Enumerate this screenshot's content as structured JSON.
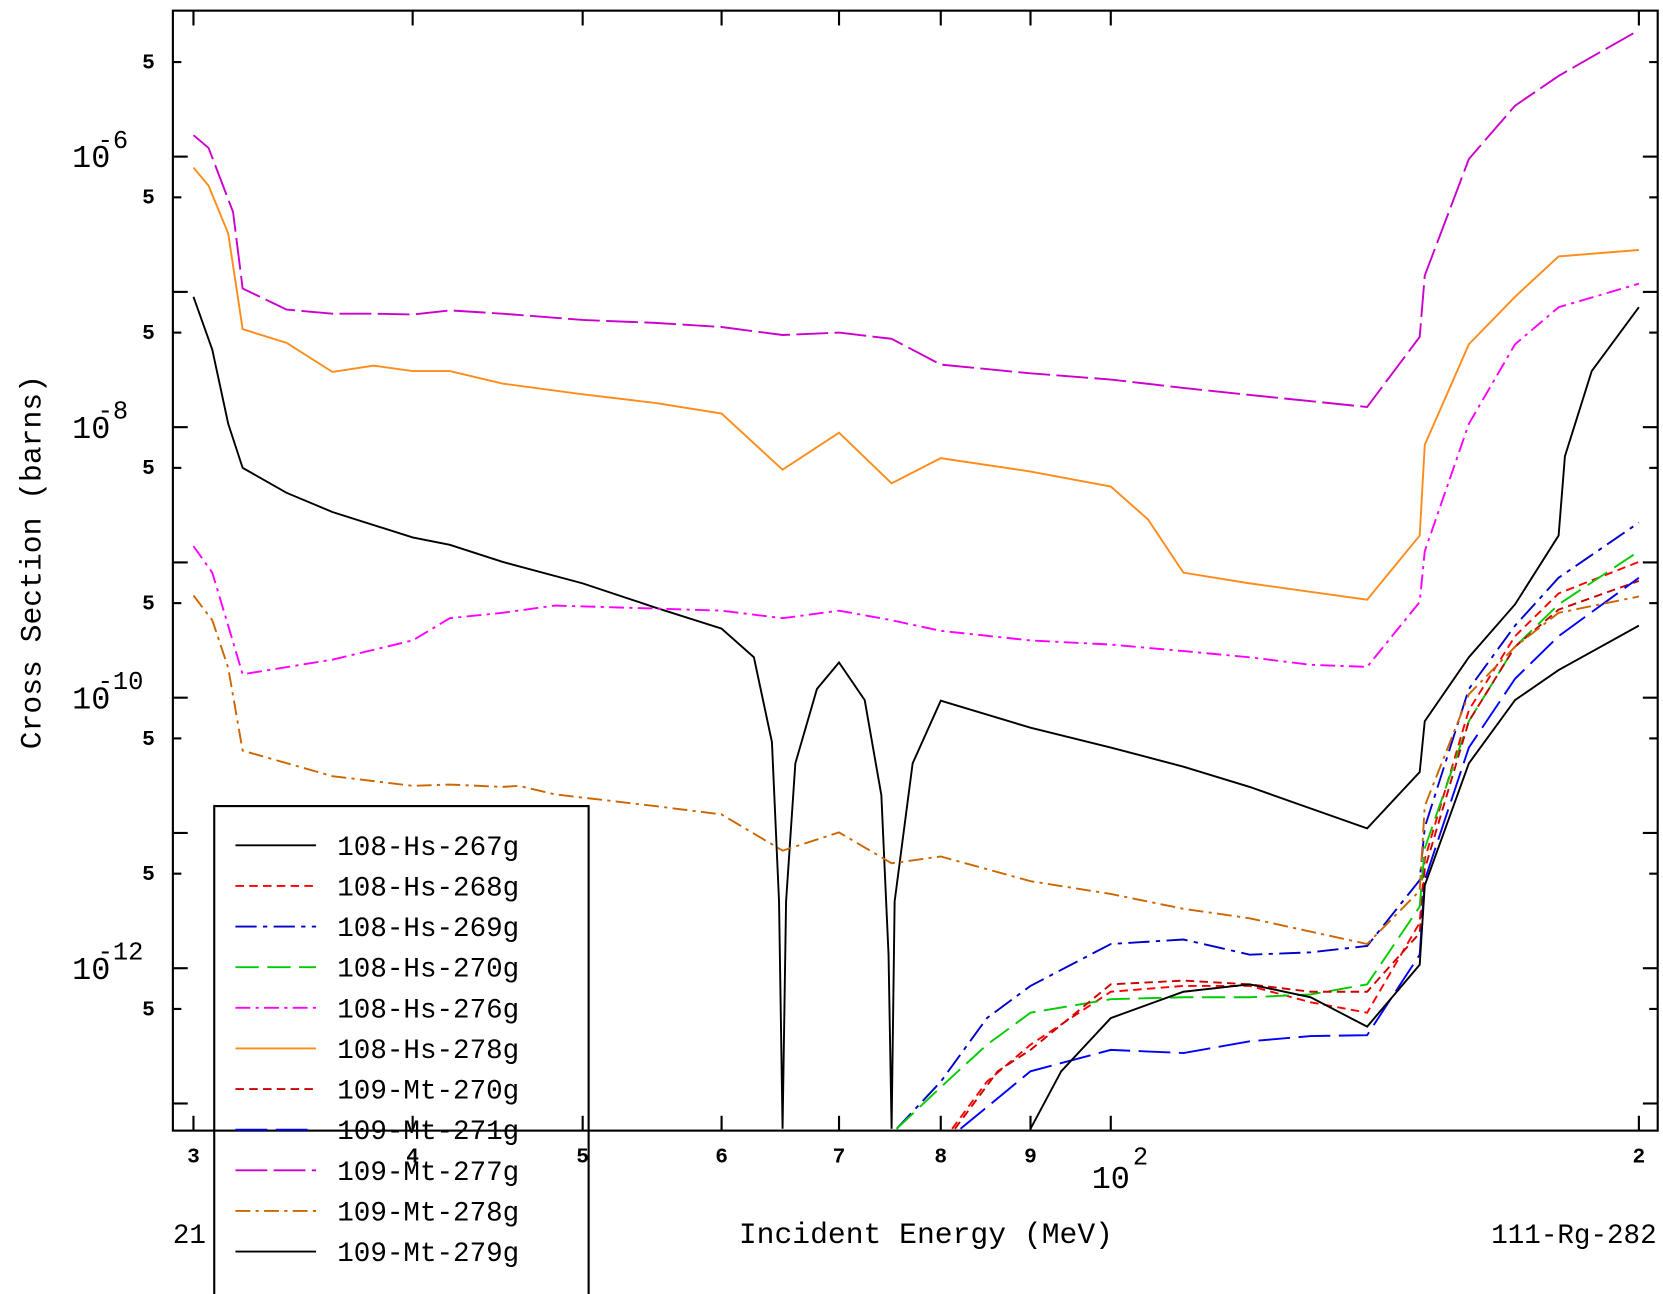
{
  "chart_data": {
    "type": "line",
    "xlabel": "Incident Energy (MeV)",
    "ylabel": "Cross Section (barns)",
    "left_note": "21",
    "right_note": "111-Rg-282",
    "xscale": "log",
    "yscale": "log",
    "legend": "lower left",
    "xlim": [
      29.2,
      205
    ],
    "ylim": [
      6.3e-14,
      1.2e-05
    ],
    "xticks": [
      {
        "value": 30,
        "label": "3"
      },
      {
        "value": 40,
        "label": "4"
      },
      {
        "value": 50,
        "label": "5"
      },
      {
        "value": 60,
        "label": "6"
      },
      {
        "value": 70,
        "label": "7"
      },
      {
        "value": 80,
        "label": "8"
      },
      {
        "value": 90,
        "label": "9"
      },
      {
        "value": 100,
        "label": "10",
        "exponent": "2"
      },
      {
        "value": 200,
        "label": "2"
      }
    ],
    "yticks": [
      {
        "value": 5e-06,
        "label": "5"
      },
      {
        "value": 1e-06,
        "label": "10",
        "exponent": "-6"
      },
      {
        "value": 5e-07,
        "label": "5"
      },
      {
        "value": 5e-08,
        "label": "5"
      },
      {
        "value": 1e-08,
        "label": "10",
        "exponent": "-8"
      },
      {
        "value": 5e-09,
        "label": "5"
      },
      {
        "value": 5e-10,
        "label": "5"
      },
      {
        "value": 1e-10,
        "label": "10",
        "exponent": "-10"
      },
      {
        "value": 5e-11,
        "label": "5"
      },
      {
        "value": 5e-12,
        "label": "5"
      },
      {
        "value": 1e-12,
        "label": "10",
        "exponent": "-12"
      },
      {
        "value": 5e-13,
        "label": "5"
      }
    ],
    "yminor": [
      1e-07,
      1e-09,
      1e-11,
      1e-13
    ],
    "series": [
      {
        "name": "108-Hs-267g",
        "color": "#000000",
        "dash": "none",
        "x": [
          30,
          30.75,
          31.4,
          32,
          33.9,
          36,
          40,
          42,
          45,
          50,
          55,
          60,
          62.6,
          64.1,
          64.7,
          65,
          65.3,
          66.1,
          68,
          70,
          72.4,
          74,
          74.7,
          75,
          75.3,
          77.1,
          80,
          90,
          100,
          110,
          120,
          140,
          150,
          151,
          160,
          170,
          180,
          181.5,
          188,
          200
        ],
        "values": [
          9.2e-08,
          3.74e-08,
          1.06e-08,
          5e-09,
          3.27e-09,
          2.36e-09,
          1.53e-09,
          1.35e-09,
          1.01e-09,
          7e-10,
          4.64e-10,
          3.24e-10,
          1.99e-10,
          4.69e-11,
          3.12e-12,
          6.5e-14,
          3.12e-12,
          3.27e-11,
          1.16e-10,
          1.82e-10,
          9.6e-11,
          1.9e-11,
          1.26e-12,
          6.5e-14,
          3.12e-12,
          3.27e-11,
          9.5e-11,
          6e-11,
          4.28e-11,
          3.09e-11,
          2.19e-11,
          1.08e-11,
          2.82e-11,
          6.7e-11,
          1.99e-10,
          4.9e-10,
          1.58e-09,
          6.1e-09,
          2.6e-08,
          7.7e-08
        ]
      },
      {
        "name": "108-Hs-268g",
        "color": "#ff0000",
        "dash": "8,5",
        "x": [
          81.2,
          85,
          90,
          100,
          110,
          120,
          130,
          140,
          150,
          151,
          160,
          170,
          180,
          200
        ],
        "values": [
          6.5e-14,
          1.45e-13,
          2.72e-13,
          6.7e-13,
          7.4e-13,
          7.4e-13,
          5.6e-13,
          4.69e-13,
          2.17e-12,
          6.4e-12,
          8.1e-11,
          2.85e-10,
          5.9e-10,
          1.01e-09
        ]
      },
      {
        "name": "108-Hs-269g",
        "color": "#0000cc",
        "dash": "20,6,4,6",
        "x": [
          75.5,
          80,
          85,
          90,
          100,
          110,
          120,
          130,
          140,
          150,
          151,
          160,
          170,
          180,
          200
        ],
        "values": [
          6.5e-14,
          1.45e-13,
          4.28e-13,
          7.4e-13,
          1.51e-12,
          1.63e-12,
          1.26e-12,
          1.31e-12,
          1.46e-12,
          4.48e-12,
          1.1e-11,
          1.16e-10,
          3.41e-10,
          7.7e-10,
          1.97e-09
        ]
      },
      {
        "name": "108-Hs-270g",
        "color": "#00cc00",
        "dash": "22,8",
        "x": [
          75.5,
          80,
          85,
          90,
          100,
          110,
          120,
          130,
          140,
          150,
          151,
          160,
          170,
          180,
          200
        ],
        "values": [
          6.5e-14,
          1.32e-13,
          2.72e-13,
          4.69e-13,
          5.9e-13,
          6.1e-13,
          6.1e-13,
          6.4e-13,
          7.6e-13,
          2.85e-12,
          7.7e-12,
          6.7e-11,
          2.38e-10,
          4.9e-10,
          1.21e-09
        ]
      },
      {
        "name": "108-Hs-276g",
        "color": "#ff00ff",
        "dash": "14,5,3,5",
        "x": [
          30,
          30.75,
          31.4,
          32,
          36,
          40,
          42,
          45,
          48.2,
          55,
          60,
          65,
          70,
          75,
          80,
          90,
          100,
          110,
          120,
          130,
          140,
          150,
          151,
          160,
          170,
          180,
          200
        ],
        "values": [
          1.32e-09,
          8.4e-10,
          3.4e-10,
          1.49e-10,
          1.91e-10,
          2.65e-10,
          3.87e-10,
          4.24e-10,
          4.8e-10,
          4.56e-10,
          4.4e-10,
          3.87e-10,
          4.4e-10,
          3.74e-10,
          3.12e-10,
          2.65e-10,
          2.47e-10,
          2.21e-10,
          1.99e-10,
          1.75e-10,
          1.69e-10,
          5.1e-10,
          1.21e-09,
          1.06e-08,
          4.1e-08,
          7.7e-08,
          1.15e-07
        ]
      },
      {
        "name": "108-Hs-278g",
        "color": "#ff8c1a",
        "dash": "none",
        "x": [
          30,
          30.6,
          31.4,
          32,
          33.9,
          36,
          38,
          40,
          42,
          45,
          50,
          55,
          60,
          65,
          70,
          75,
          80,
          90,
          100,
          105,
          110,
          120,
          140,
          150,
          151,
          160,
          170,
          180,
          200
        ],
        "values": [
          8.3e-07,
          6.1e-07,
          2.7e-07,
          5.3e-08,
          4.2e-08,
          2.56e-08,
          2.85e-08,
          2.6e-08,
          2.6e-08,
          2.1e-08,
          1.75e-08,
          1.51e-08,
          1.26e-08,
          4.85e-09,
          9.1e-09,
          3.84e-09,
          5.9e-09,
          4.7e-09,
          3.64e-09,
          2.08e-09,
          8.4e-10,
          7e-10,
          5.3e-10,
          1.58e-09,
          7.4e-09,
          4.1e-08,
          9.2e-08,
          1.83e-07,
          2.04e-07
        ]
      },
      {
        "name": "109-Mt-270g",
        "color": "#cc0000",
        "dash": "8,5",
        "x": [
          81.5,
          86.2,
          90,
          100,
          110,
          120,
          130,
          140,
          150,
          151,
          160,
          170,
          180,
          200
        ],
        "values": [
          6.5e-14,
          1.73e-13,
          2.49e-13,
          7.6e-13,
          8.1e-13,
          7.6e-13,
          6.7e-13,
          6.7e-13,
          1.82e-12,
          5.4e-12,
          6.7e-11,
          2.38e-10,
          4.48e-10,
          7.3e-10
        ]
      },
      {
        "name": "109-Mt-271g",
        "color": "#0000ff",
        "dash": "30,8",
        "x": [
          82.1,
          90,
          100,
          110,
          120,
          130,
          140,
          150,
          151,
          160,
          170,
          180,
          200
        ],
        "values": [
          6.5e-14,
          1.73e-13,
          2.49e-13,
          2.36e-13,
          2.88e-13,
          3.15e-13,
          3.2e-13,
          1.26e-12,
          4.48e-12,
          4.28e-11,
          1.38e-10,
          2.85e-10,
          7.7e-10
        ]
      },
      {
        "name": "109-Mt-277g",
        "color": "#cc00cc",
        "dash": "30,6",
        "x": [
          30,
          30.6,
          31.6,
          32,
          33.9,
          36,
          38,
          40,
          42,
          45,
          50,
          55,
          60,
          65,
          70,
          75,
          80,
          90,
          100,
          110,
          120,
          140,
          150,
          151,
          160,
          170,
          180,
          190,
          200
        ],
        "values": [
          1.44e-06,
          1.16e-06,
          3.9e-07,
          1.06e-07,
          7.4e-08,
          6.9e-08,
          6.9e-08,
          6.8e-08,
          7.3e-08,
          6.9e-08,
          6.2e-08,
          5.9e-08,
          5.5e-08,
          4.8e-08,
          5e-08,
          4.5e-08,
          2.9e-08,
          2.5e-08,
          2.25e-08,
          1.95e-08,
          1.73e-08,
          1.41e-08,
          4.65e-08,
          1.32e-07,
          9.6e-07,
          2.38e-06,
          3.95e-06,
          5.9e-06,
          8.6e-06
        ]
      },
      {
        "name": "109-Mt-278g",
        "color": "#cc6600",
        "dash": "14,5,3,5",
        "x": [
          30,
          30.75,
          31.4,
          32,
          36,
          40,
          42,
          45,
          46,
          48.2,
          55,
          60,
          65,
          70,
          75,
          80,
          90,
          100,
          110,
          120,
          140,
          150,
          151,
          160,
          170,
          180,
          200
        ],
        "values": [
          5.7e-10,
          3.74e-10,
          1.66e-10,
          4.06e-11,
          2.63e-11,
          2.23e-11,
          2.28e-11,
          2.19e-11,
          2.23e-11,
          1.93e-11,
          1.58e-11,
          1.37e-11,
          7.4e-12,
          1.01e-11,
          5.97e-12,
          6.7e-12,
          4.4e-12,
          3.54e-12,
          2.75e-12,
          2.34e-12,
          1.51e-12,
          3.74e-12,
          1.58e-11,
          1.06e-10,
          2.38e-10,
          4.24e-10,
          5.6e-10
        ]
      },
      {
        "name": "109-Mt-279g",
        "color": "#000000",
        "dash": "none",
        "x": [
          90,
          93.7,
          100,
          110,
          120,
          130,
          140,
          150,
          151,
          160,
          170,
          180,
          200
        ],
        "values": [
          6.5e-14,
          1.73e-13,
          4.28e-13,
          6.7e-13,
          7.6e-13,
          6.1e-13,
          3.7e-13,
          1.06e-12,
          4.09e-12,
          3.27e-11,
          9.6e-11,
          1.6e-10,
          3.41e-10
        ]
      }
    ]
  }
}
